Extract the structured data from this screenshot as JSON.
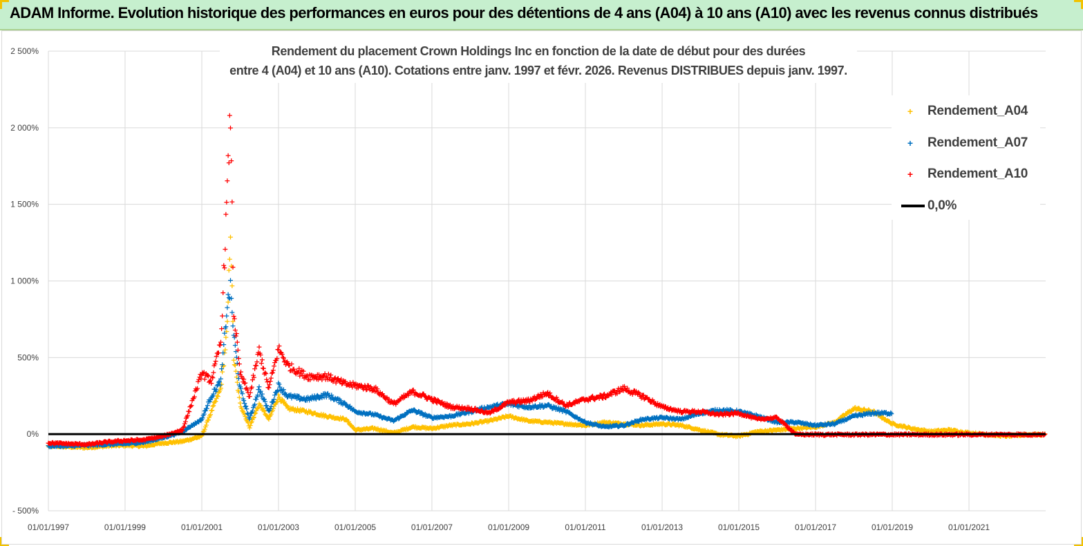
{
  "banner": {
    "title": "ADAM Informe. Evolution historique des performances en euros pour des détentions de 4 ans (A04) à 10 ans (A10) avec les revenus connus distribués"
  },
  "chart_data": {
    "type": "scatter",
    "title_lines": [
      "Rendement du placement Crown Holdings Inc en fonction de la date de début pour des durées",
      "entre 4 (A04) et 10 ans (A10).  Cotations entre janv. 1997 et févr. 2026. Revenus DISTRIBUES depuis janv. 1997."
    ],
    "x_start": "1997-01-01",
    "x_end": "2023-01-01",
    "x_tick_labels": [
      "01/01/1997",
      "01/01/1999",
      "01/01/2001",
      "01/01/2003",
      "01/01/2005",
      "01/01/2007",
      "01/01/2009",
      "01/01/2011",
      "01/01/2013",
      "01/01/2015",
      "01/01/2017",
      "01/01/2019",
      "01/01/2021"
    ],
    "ylim": [
      -500,
      2500
    ],
    "y_tick_labels": [
      "- 500%",
      "0%",
      "500%",
      "1 000%",
      "1 500%",
      "2 000%",
      "2 500%"
    ],
    "y_tick_values": [
      -500,
      0,
      500,
      1000,
      1500,
      2000,
      2500
    ],
    "grid": true,
    "legend_position": "right",
    "reference_line": {
      "name": "0,0%",
      "value": 0,
      "color": "#000000"
    },
    "series": [
      {
        "name": "Rendement_A04",
        "color": "#ffc000",
        "points": [
          [
            "1997-01-01",
            -75
          ],
          [
            "1997-07-01",
            -80
          ],
          [
            "1998-01-01",
            -85
          ],
          [
            "1998-07-01",
            -75
          ],
          [
            "1999-01-01",
            -70
          ],
          [
            "1999-07-01",
            -75
          ],
          [
            "2000-01-01",
            -55
          ],
          [
            "2000-07-01",
            -45
          ],
          [
            "2001-01-01",
            -10
          ],
          [
            "2001-04-01",
            150
          ],
          [
            "2001-07-01",
            300
          ],
          [
            "2001-09-01",
            700
          ],
          [
            "2001-10-01",
            1350
          ],
          [
            "2001-11-01",
            500
          ],
          [
            "2002-01-01",
            200
          ],
          [
            "2002-04-01",
            50
          ],
          [
            "2002-07-01",
            200
          ],
          [
            "2002-10-01",
            100
          ],
          [
            "2003-01-01",
            250
          ],
          [
            "2003-04-01",
            170
          ],
          [
            "2003-10-01",
            150
          ],
          [
            "2004-04-01",
            120
          ],
          [
            "2004-10-01",
            100
          ],
          [
            "2005-01-01",
            30
          ],
          [
            "2005-07-01",
            40
          ],
          [
            "2006-01-01",
            10
          ],
          [
            "2006-07-01",
            50
          ],
          [
            "2007-01-01",
            40
          ],
          [
            "2007-07-01",
            60
          ],
          [
            "2008-01-01",
            70
          ],
          [
            "2008-07-01",
            90
          ],
          [
            "2009-01-01",
            120
          ],
          [
            "2009-07-01",
            90
          ],
          [
            "2010-01-01",
            80
          ],
          [
            "2010-07-01",
            70
          ],
          [
            "2011-01-01",
            60
          ],
          [
            "2011-07-01",
            80
          ],
          [
            "2012-01-01",
            70
          ],
          [
            "2012-07-01",
            60
          ],
          [
            "2013-01-01",
            70
          ],
          [
            "2013-07-01",
            60
          ],
          [
            "2014-01-01",
            30
          ],
          [
            "2014-07-01",
            0
          ],
          [
            "2015-01-01",
            -10
          ],
          [
            "2015-07-01",
            20
          ],
          [
            "2016-01-01",
            30
          ],
          [
            "2016-07-01",
            40
          ],
          [
            "2017-01-01",
            50
          ],
          [
            "2017-07-01",
            80
          ],
          [
            "2018-01-01",
            170
          ],
          [
            "2018-07-01",
            150
          ],
          [
            "2019-01-01",
            70
          ],
          [
            "2019-07-01",
            40
          ],
          [
            "2020-01-01",
            20
          ],
          [
            "2020-07-01",
            30
          ],
          [
            "2021-01-01",
            10
          ],
          [
            "2021-07-01",
            0
          ],
          [
            "2022-01-01",
            -10
          ],
          [
            "2022-07-01",
            0
          ],
          [
            "2023-01-01",
            0
          ]
        ]
      },
      {
        "name": "Rendement_A07",
        "color": "#0070c0",
        "points": [
          [
            "1997-01-01",
            -75
          ],
          [
            "1997-07-01",
            -75
          ],
          [
            "1998-01-01",
            -70
          ],
          [
            "1998-07-01",
            -65
          ],
          [
            "1999-01-01",
            -60
          ],
          [
            "1999-07-01",
            -50
          ],
          [
            "2000-01-01",
            -20
          ],
          [
            "2000-07-01",
            20
          ],
          [
            "2001-01-01",
            100
          ],
          [
            "2001-04-01",
            250
          ],
          [
            "2001-07-01",
            350
          ],
          [
            "2001-09-01",
            850
          ],
          [
            "2001-10-01",
            950
          ],
          [
            "2001-11-01",
            650
          ],
          [
            "2002-01-01",
            300
          ],
          [
            "2002-04-01",
            100
          ],
          [
            "2002-07-01",
            300
          ],
          [
            "2002-10-01",
            150
          ],
          [
            "2003-01-01",
            320
          ],
          [
            "2003-04-01",
            250
          ],
          [
            "2003-10-01",
            230
          ],
          [
            "2004-04-01",
            260
          ],
          [
            "2004-10-01",
            200
          ],
          [
            "2005-01-01",
            150
          ],
          [
            "2005-07-01",
            130
          ],
          [
            "2006-01-01",
            90
          ],
          [
            "2006-07-01",
            160
          ],
          [
            "2007-01-01",
            110
          ],
          [
            "2007-07-01",
            120
          ],
          [
            "2008-01-01",
            150
          ],
          [
            "2008-07-01",
            180
          ],
          [
            "2009-01-01",
            200
          ],
          [
            "2009-07-01",
            180
          ],
          [
            "2010-01-01",
            190
          ],
          [
            "2010-07-01",
            150
          ],
          [
            "2011-01-01",
            80
          ],
          [
            "2011-07-01",
            50
          ],
          [
            "2012-01-01",
            60
          ],
          [
            "2012-07-01",
            100
          ],
          [
            "2013-01-01",
            110
          ],
          [
            "2013-07-01",
            100
          ],
          [
            "2014-01-01",
            140
          ],
          [
            "2014-07-01",
            160
          ],
          [
            "2015-01-01",
            150
          ],
          [
            "2015-07-01",
            120
          ],
          [
            "2016-01-01",
            80
          ],
          [
            "2016-07-01",
            80
          ],
          [
            "2017-01-01",
            60
          ],
          [
            "2017-07-01",
            70
          ],
          [
            "2018-01-01",
            120
          ],
          [
            "2018-07-01",
            140
          ],
          [
            "2019-01-01",
            140
          ]
        ]
      },
      {
        "name": "Rendement_A10",
        "color": "#ff0000",
        "points": [
          [
            "1997-01-01",
            -55
          ],
          [
            "1997-07-01",
            -60
          ],
          [
            "1998-01-01",
            -65
          ],
          [
            "1998-07-01",
            -50
          ],
          [
            "1999-01-01",
            -40
          ],
          [
            "1999-07-01",
            -35
          ],
          [
            "2000-01-01",
            -10
          ],
          [
            "2000-07-01",
            30
          ],
          [
            "2001-01-01",
            400
          ],
          [
            "2001-04-01",
            350
          ],
          [
            "2001-07-01",
            600
          ],
          [
            "2001-09-01",
            1600
          ],
          [
            "2001-10-01",
            2100
          ],
          [
            "2001-11-01",
            800
          ],
          [
            "2002-01-01",
            400
          ],
          [
            "2002-04-01",
            250
          ],
          [
            "2002-07-01",
            550
          ],
          [
            "2002-10-01",
            300
          ],
          [
            "2003-01-01",
            560
          ],
          [
            "2003-04-01",
            450
          ],
          [
            "2003-10-01",
            380
          ],
          [
            "2004-04-01",
            380
          ],
          [
            "2004-10-01",
            330
          ],
          [
            "2005-01-01",
            320
          ],
          [
            "2005-07-01",
            300
          ],
          [
            "2006-01-01",
            200
          ],
          [
            "2006-07-01",
            280
          ],
          [
            "2007-01-01",
            230
          ],
          [
            "2007-07-01",
            180
          ],
          [
            "2008-01-01",
            170
          ],
          [
            "2008-07-01",
            140
          ],
          [
            "2009-01-01",
            210
          ],
          [
            "2009-07-01",
            220
          ],
          [
            "2010-01-01",
            270
          ],
          [
            "2010-07-01",
            190
          ],
          [
            "2011-01-01",
            230
          ],
          [
            "2011-07-01",
            250
          ],
          [
            "2012-01-01",
            300
          ],
          [
            "2012-07-01",
            250
          ],
          [
            "2013-01-01",
            180
          ],
          [
            "2013-07-01",
            150
          ],
          [
            "2014-01-01",
            150
          ],
          [
            "2014-07-01",
            130
          ],
          [
            "2015-01-01",
            140
          ],
          [
            "2015-07-01",
            100
          ],
          [
            "2016-01-01",
            110
          ],
          [
            "2016-07-01",
            0
          ],
          [
            "2017-01-01",
            0
          ],
          [
            "2017-07-01",
            0
          ],
          [
            "2018-01-01",
            0
          ],
          [
            "2018-07-01",
            0
          ],
          [
            "2019-01-01",
            0
          ],
          [
            "2019-07-01",
            0
          ],
          [
            "2020-01-01",
            0
          ],
          [
            "2020-07-01",
            0
          ],
          [
            "2021-01-01",
            0
          ],
          [
            "2021-07-01",
            0
          ],
          [
            "2022-01-01",
            0
          ],
          [
            "2022-07-01",
            0
          ],
          [
            "2023-01-01",
            0
          ]
        ]
      }
    ]
  },
  "legend": {
    "items": [
      "Rendement_A04",
      "Rendement_A07",
      "Rendement_A10",
      "0,0%"
    ]
  }
}
